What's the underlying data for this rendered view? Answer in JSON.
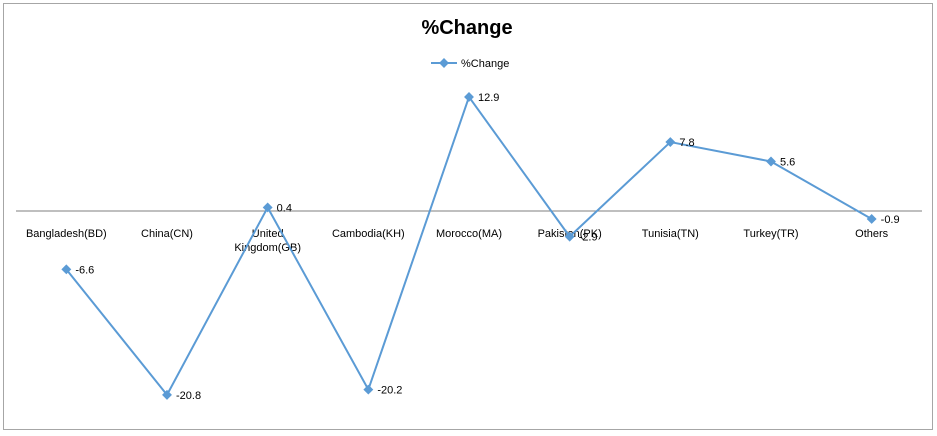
{
  "chart_data": {
    "type": "line",
    "title": "%Change",
    "xlabel": "",
    "ylabel": "",
    "categories": [
      "Bangladesh(BD)",
      "China(CN)",
      "United Kingdom(GB)",
      "Cambodia(KH)",
      "Morocco(MA)",
      "Pakistan(PK)",
      "Tunisia(TN)",
      "Turkey(TR)",
      "Others"
    ],
    "series": [
      {
        "name": "%Change",
        "values": [
          -6.6,
          -20.8,
          0.4,
          -20.2,
          12.9,
          -2.9,
          7.8,
          5.6,
          -0.9
        ]
      }
    ],
    "data_labels": [
      "-6.6",
      "-20.8",
      "0.4",
      "-20.2",
      "12.9",
      "-2.9",
      "7.8",
      "5.6",
      "-0.9"
    ],
    "ylim": [
      -24,
      15
    ],
    "grid": false,
    "legend_position": "top",
    "colors": {
      "series": "#5b9bd5",
      "axis": "#7f7f7f",
      "text": "#000000",
      "border": "#a6a6a6"
    }
  }
}
